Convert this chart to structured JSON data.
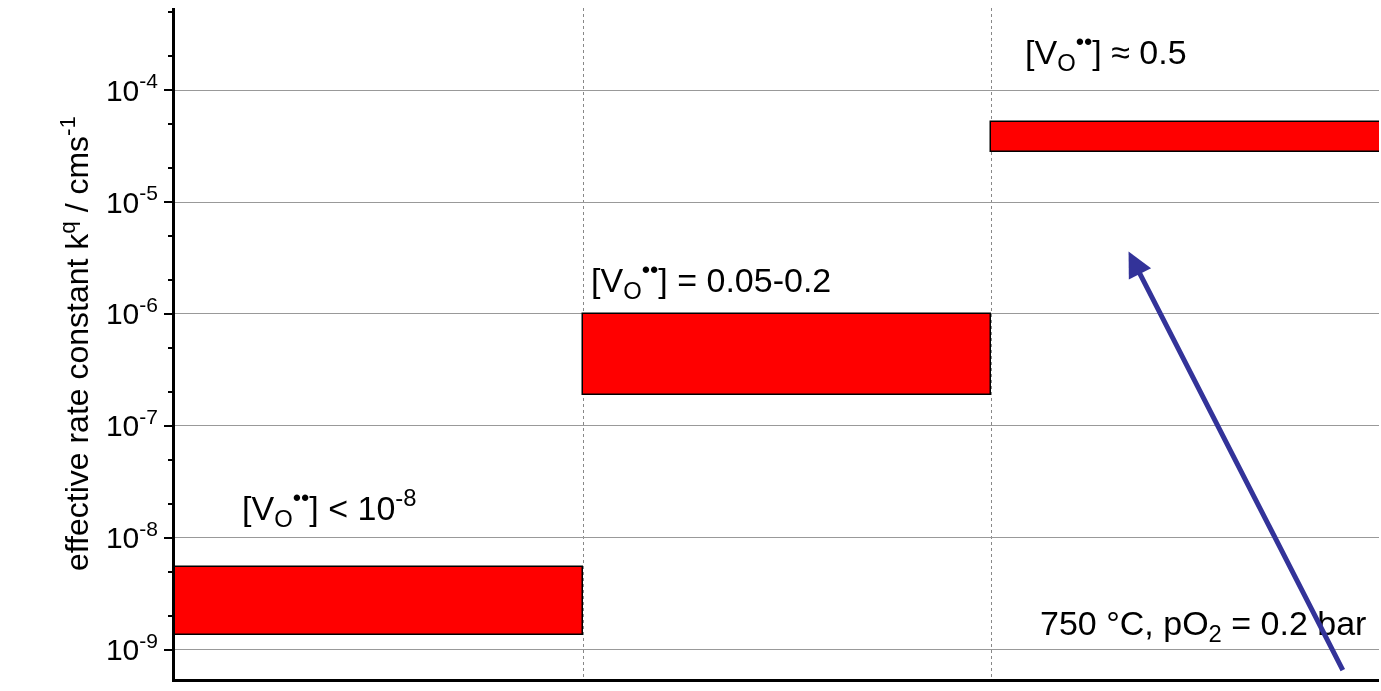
{
  "chart_data": {
    "type": "bar",
    "ylabel": "effective rate constant k$^{q}$ / cms$^{-1}$",
    "categories": [
      null,
      null,
      null
    ],
    "values": [
      4.1e-09,
      8.1e-07,
      2.4e-05
    ],
    "base": [
      1.36e-09,
      1.9e-07,
      2.8e-05
    ],
    "color": "#ff0000",
    "log": "y",
    "ylim": [
      5.5e-10,
      0.00054
    ],
    "yticks": [
      {
        "value": 1e-09,
        "label": "10$^{-9}$"
      },
      {
        "value": 1e-08,
        "label": "10$^{-8}$"
      },
      {
        "value": 1e-07,
        "label": "10$^{-7}$"
      },
      {
        "value": 1e-06,
        "label": "10$^{-6}$"
      },
      {
        "value": 1e-05,
        "label": "10$^{-5}$"
      },
      {
        "value": 0.0001,
        "label": "10$^{-4}$"
      }
    ],
    "grid": true,
    "tick_labels": "y",
    "annotations": [
      "[V$_{O}$$^{••}$] < 10$^{-8}$",
      "[V$_{O}$$^{••}$] = 0.05-0.2",
      "[V$_{O}$$^{••}$] ≈ 0.5",
      "750 °C, pO$_{2}$ = 0.2 bar"
    ]
  }
}
